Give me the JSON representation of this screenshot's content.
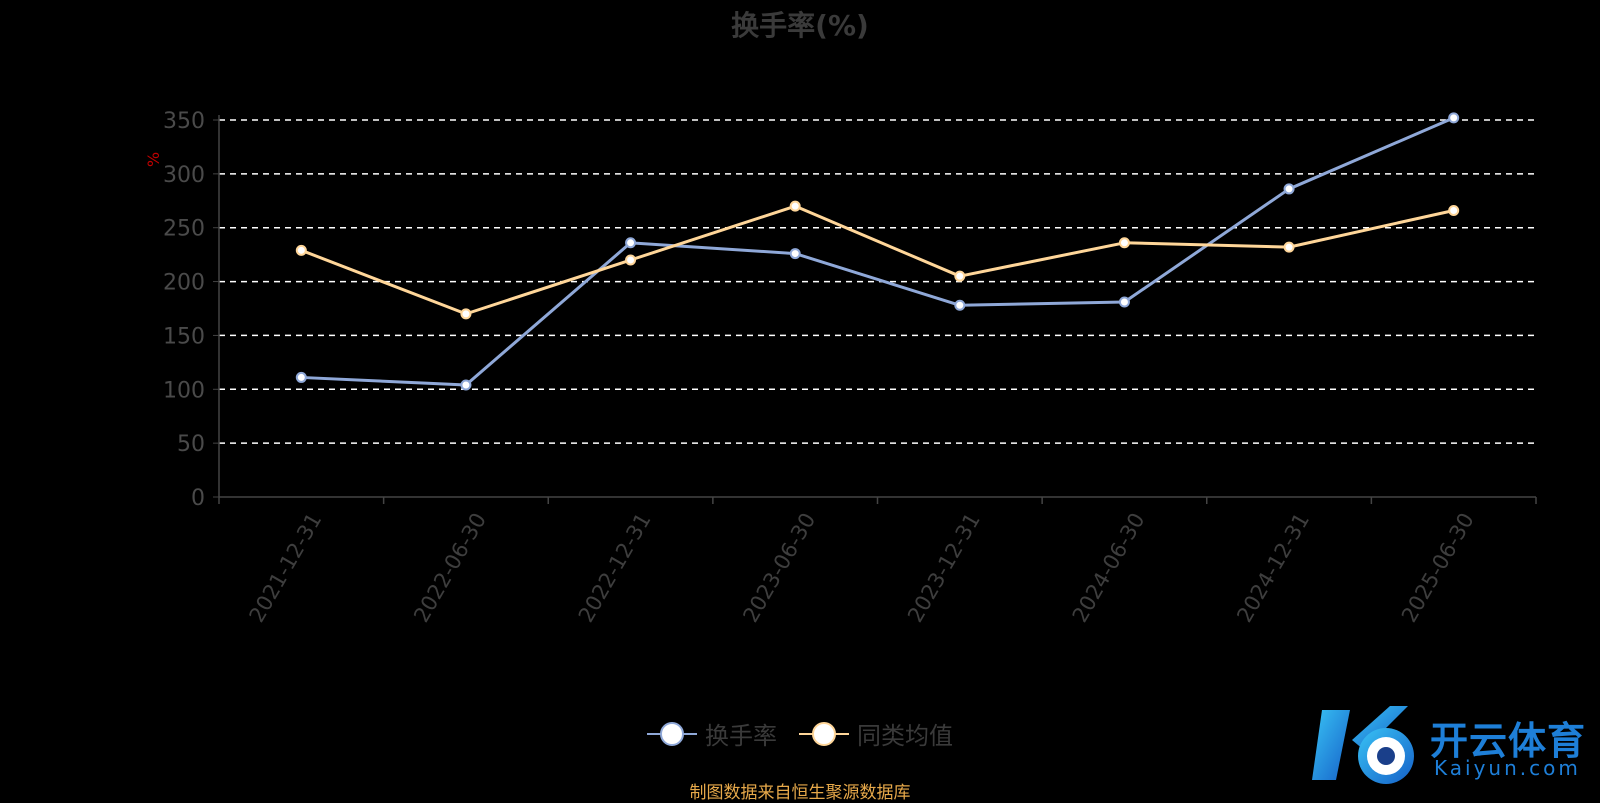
{
  "chart_data": {
    "type": "line",
    "title": "换手率(%)",
    "ylabel": "%",
    "categories": [
      "2021-12-31",
      "2022-06-30",
      "2022-12-31",
      "2023-06-30",
      "2023-12-31",
      "2024-06-30",
      "2024-12-31",
      "2025-06-30"
    ],
    "ylim": [
      0,
      350
    ],
    "yticks": [
      0,
      50,
      100,
      150,
      200,
      250,
      300,
      350
    ],
    "grid": true,
    "legend_position": "bottom",
    "series": [
      {
        "name": "换手率",
        "color": "#8fa8d8",
        "values": [
          111,
          104,
          236,
          226,
          178,
          181,
          286,
          352
        ]
      },
      {
        "name": "同类均值",
        "color": "#ffd699",
        "values": [
          229,
          170,
          220,
          270,
          205,
          236,
          232,
          266
        ]
      }
    ]
  },
  "source_note": "制图数据来自恒生聚源数据库",
  "logo": {
    "cn": "开云体育",
    "en": "Kaiyun.com"
  }
}
